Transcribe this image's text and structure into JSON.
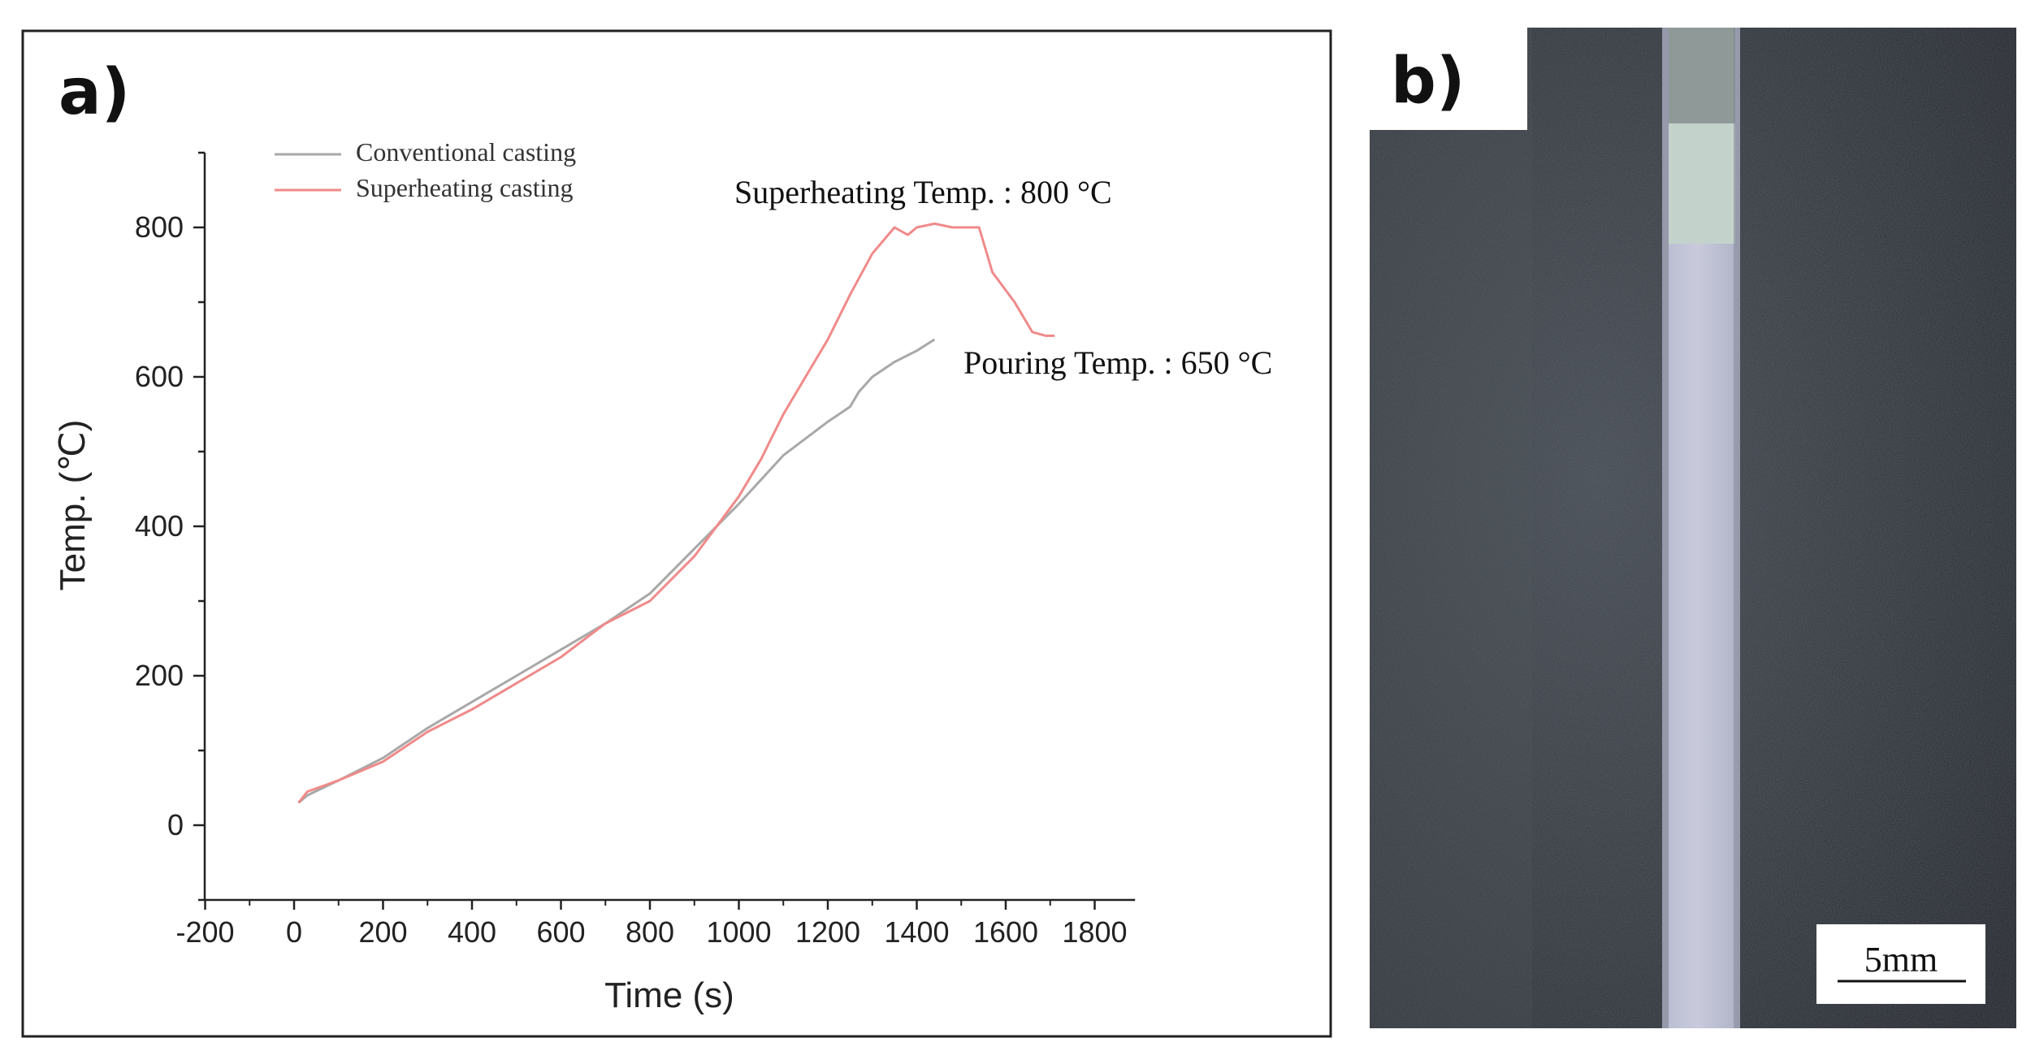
{
  "panel_a": {
    "label": "a)"
  },
  "panel_b": {
    "label": "b)",
    "scale_bar": "5mm"
  },
  "chart_data": {
    "type": "line",
    "title": "",
    "xlabel": "Time (s)",
    "ylabel": "Temp. (℃)",
    "xlim": [
      -200,
      1900
    ],
    "ylim": [
      -100,
      900
    ],
    "xticks": [
      -200,
      0,
      200,
      400,
      600,
      800,
      1000,
      1200,
      1400,
      1600,
      1800
    ],
    "yticks": [
      0,
      200,
      400,
      600,
      800
    ],
    "legend_position": "top-left",
    "series": [
      {
        "name": "Conventional casting",
        "color": "#a8a8a8",
        "x": [
          10,
          30,
          100,
          200,
          250,
          300,
          400,
          500,
          600,
          700,
          800,
          900,
          1000,
          1100,
          1200,
          1250,
          1270,
          1300,
          1350,
          1400,
          1440
        ],
        "y": [
          30,
          40,
          60,
          90,
          110,
          130,
          165,
          200,
          235,
          270,
          310,
          370,
          430,
          495,
          540,
          560,
          580,
          600,
          620,
          635,
          650
        ]
      },
      {
        "name": "Superheating casting",
        "color": "#f08a8a",
        "x": [
          10,
          30,
          100,
          200,
          250,
          300,
          400,
          500,
          600,
          700,
          800,
          900,
          1000,
          1050,
          1100,
          1150,
          1200,
          1250,
          1300,
          1350,
          1380,
          1400,
          1440,
          1480,
          1500,
          1540,
          1570,
          1620,
          1660,
          1690,
          1710
        ],
        "y": [
          30,
          45,
          60,
          85,
          105,
          125,
          155,
          190,
          225,
          270,
          300,
          360,
          440,
          490,
          550,
          600,
          650,
          710,
          765,
          800,
          790,
          800,
          805,
          800,
          800,
          800,
          740,
          700,
          660,
          655,
          655
        ]
      }
    ],
    "annotations": [
      {
        "text": "Superheating Temp. : 800 °C"
      },
      {
        "text": "Pouring Temp. : 650 °C"
      }
    ]
  }
}
